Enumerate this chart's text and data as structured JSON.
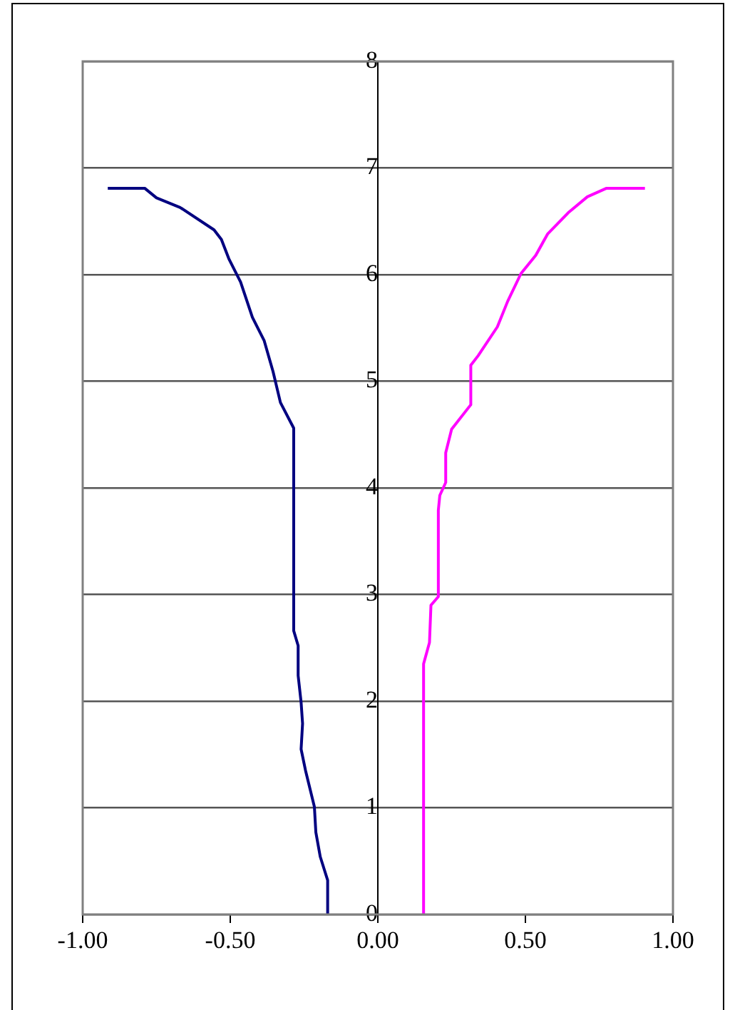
{
  "chart_data": {
    "type": "line",
    "series": [
      {
        "color": "#000080",
        "x": [
          -0.915,
          -0.79,
          -0.75,
          -0.67,
          -0.555,
          -0.53,
          -0.505,
          -0.465,
          -0.425,
          -0.385,
          -0.355,
          -0.33,
          -0.285,
          -0.285,
          -0.27,
          -0.27,
          -0.26,
          -0.255,
          -0.26,
          -0.245,
          -0.215,
          -0.21,
          -0.195,
          -0.17,
          -0.17
        ],
        "values": [
          6.81,
          6.81,
          6.72,
          6.63,
          6.42,
          6.33,
          6.15,
          5.93,
          5.6,
          5.38,
          5.09,
          4.8,
          4.56,
          2.66,
          2.52,
          2.24,
          1.99,
          1.79,
          1.55,
          1.35,
          1.01,
          0.77,
          0.54,
          0.32,
          0
        ]
      },
      {
        "color": "#ff00ff",
        "x": [
          0.905,
          0.775,
          0.71,
          0.645,
          0.575,
          0.535,
          0.485,
          0.44,
          0.405,
          0.34,
          0.315,
          0.315,
          0.25,
          0.23,
          0.23,
          0.21,
          0.205,
          0.205,
          0.18,
          0.175,
          0.155,
          0.155
        ],
        "values": [
          6.81,
          6.81,
          6.73,
          6.58,
          6.38,
          6.18,
          6.01,
          5.75,
          5.51,
          5.24,
          5.15,
          4.78,
          4.55,
          4.33,
          4.05,
          3.93,
          3.79,
          2.98,
          2.9,
          2.55,
          2.35,
          0
        ]
      }
    ],
    "xlim": [
      -1,
      1
    ],
    "xticks": [
      {
        "value": -1,
        "label": "-1.00"
      },
      {
        "value": -0.5,
        "label": "-0.50"
      },
      {
        "value": 0,
        "label": "0.00"
      },
      {
        "value": 0.5,
        "label": "0.50"
      },
      {
        "value": 1,
        "label": "1.00"
      }
    ],
    "ylim": [
      0,
      8
    ],
    "yticks": [
      0,
      1,
      2,
      3,
      4,
      5,
      6,
      7,
      8
    ],
    "grid": "y",
    "legend": false,
    "marker": "none",
    "line_style": "solid"
  }
}
